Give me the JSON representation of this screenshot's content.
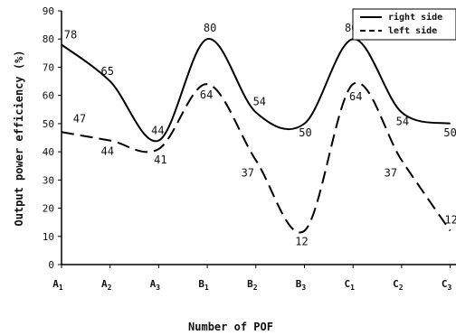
{
  "chart_data": {
    "type": "line",
    "xlabel": "Number of POF",
    "ylabel": "Output power efficiency (%)",
    "ylim": [
      0,
      90
    ],
    "yticks": [
      0,
      10,
      20,
      30,
      40,
      50,
      60,
      70,
      80,
      90
    ],
    "categories": [
      "A1",
      "A2",
      "A3",
      "B1",
      "B2",
      "B3",
      "C1",
      "C2",
      "C3"
    ],
    "category_labels": [
      {
        "base": "A",
        "sub": "1"
      },
      {
        "base": "A",
        "sub": "2"
      },
      {
        "base": "A",
        "sub": "3"
      },
      {
        "base": "B",
        "sub": "1"
      },
      {
        "base": "B",
        "sub": "2"
      },
      {
        "base": "B",
        "sub": "3"
      },
      {
        "base": "C",
        "sub": "1"
      },
      {
        "base": "C",
        "sub": "2"
      },
      {
        "base": "C",
        "sub": "3"
      }
    ],
    "grid": false,
    "legend_position": "top-right",
    "series": [
      {
        "name": "right side",
        "style": "solid",
        "color": "#000000",
        "values": [
          78,
          65,
          44,
          80,
          54,
          50,
          80,
          54,
          50
        ]
      },
      {
        "name": "left side",
        "style": "dashed",
        "color": "#000000",
        "values": [
          47,
          44,
          41,
          64,
          37,
          12,
          64,
          37,
          12
        ]
      }
    ]
  }
}
